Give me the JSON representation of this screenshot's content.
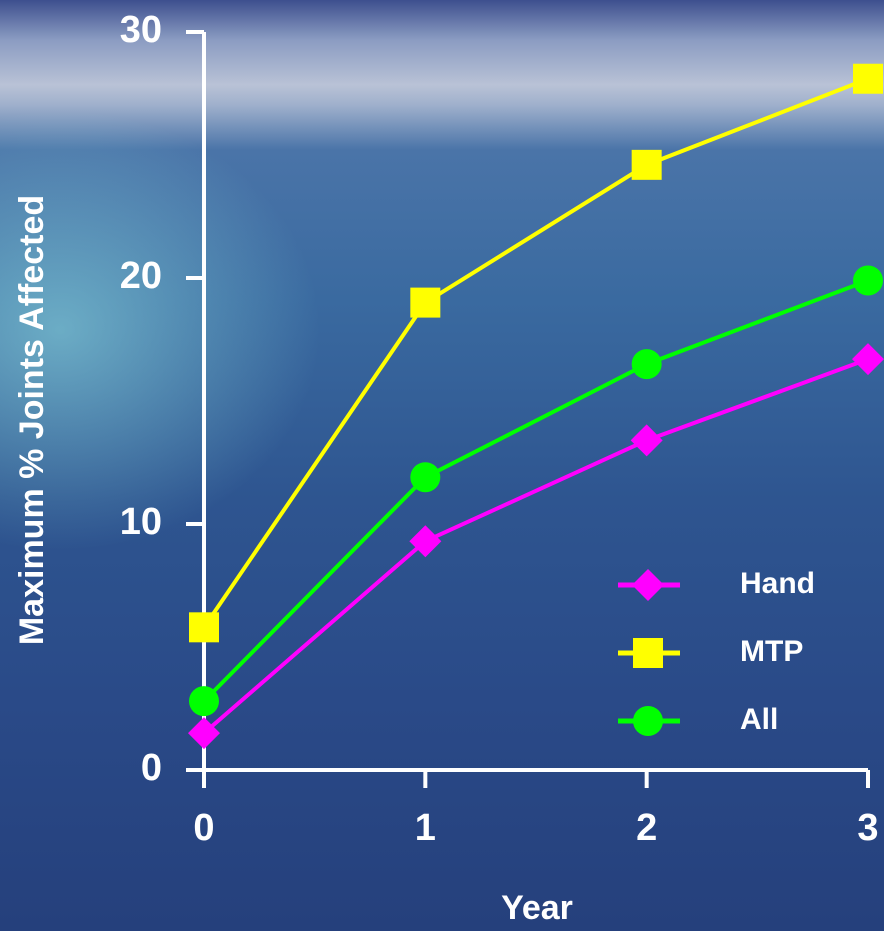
{
  "chart_data": {
    "type": "line",
    "x_label": "Year",
    "y_label": "Maximum % Joints Affected",
    "x": [
      0,
      1,
      2,
      3
    ],
    "series": [
      {
        "name": "Hand",
        "color": "#ff00ff",
        "marker": "diamond",
        "values": [
          1.5,
          9.3,
          13.4,
          16.7
        ]
      },
      {
        "name": "MTP",
        "color": "#ffff00",
        "marker": "square",
        "values": [
          5.8,
          19.0,
          24.6,
          28.1
        ]
      },
      {
        "name": "All",
        "color": "#00ff00",
        "marker": "circle",
        "values": [
          2.8,
          11.9,
          16.5,
          19.9
        ]
      }
    ],
    "xlim": [
      0,
      3
    ],
    "xticks": [
      0,
      1,
      2,
      3
    ],
    "ylim": [
      0,
      30
    ],
    "yticks": [
      0,
      10,
      20,
      30
    ],
    "legend": "lower right"
  }
}
